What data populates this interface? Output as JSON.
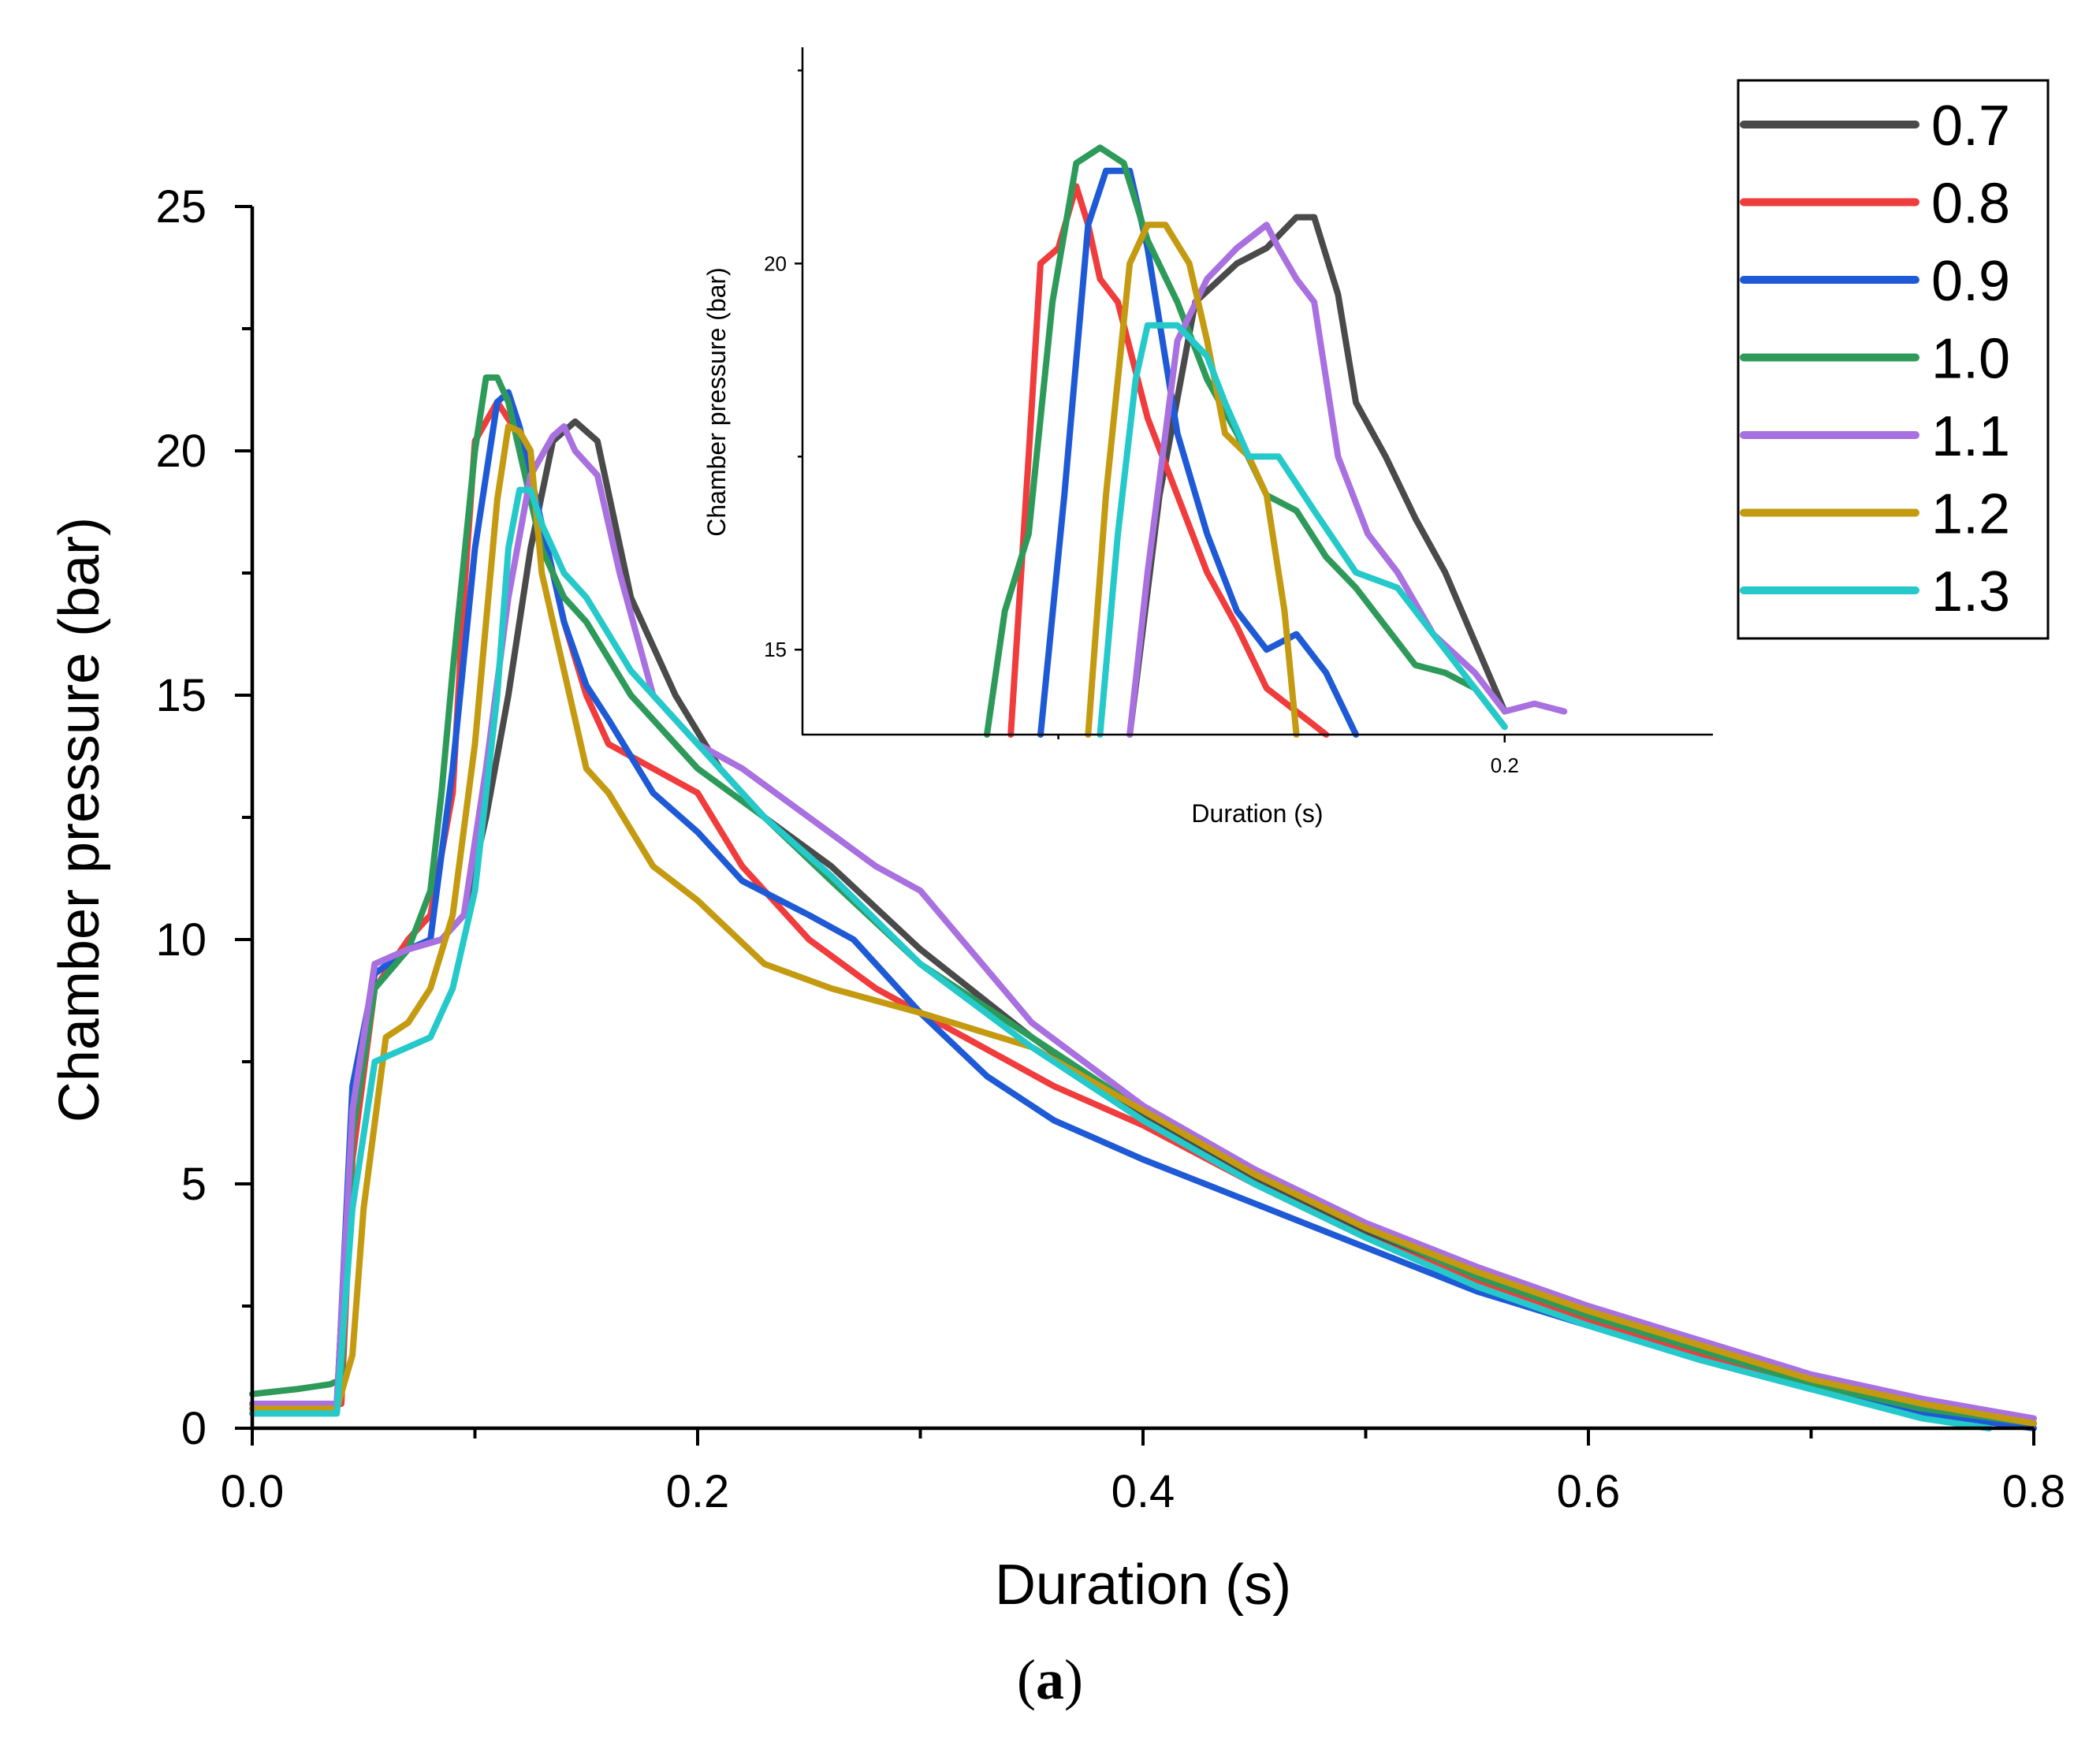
{
  "chart_data": [
    {
      "type": "line",
      "title": "",
      "xlabel": "Duration (s)",
      "ylabel": "Chamber pressure (bar)",
      "xlim": [
        0,
        0.8
      ],
      "ylim": [
        0,
        25
      ],
      "x_ticks": [
        "0.0",
        "0.2",
        "0.4",
        "0.6",
        "0.8"
      ],
      "y_ticks": [
        "0",
        "5",
        "10",
        "15",
        "20",
        "25"
      ],
      "x_tick_values": [
        0,
        0.2,
        0.4,
        0.6,
        0.8
      ],
      "y_tick_values": [
        0,
        5,
        10,
        15,
        20,
        25
      ],
      "legend_position": "top-right",
      "series": [
        {
          "name": "0.7",
          "color": "#4a4a4a",
          "x": [
            0,
            0.02,
            0.038,
            0.045,
            0.055,
            0.07,
            0.085,
            0.095,
            0.105,
            0.115,
            0.125,
            0.135,
            0.145,
            0.155,
            0.17,
            0.19,
            0.21,
            0.23,
            0.26,
            0.3,
            0.35,
            0.4,
            0.45,
            0.5,
            0.55,
            0.6,
            0.65,
            0.7,
            0.75,
            0.8
          ],
          "y": [
            0.5,
            0.5,
            0.5,
            6.5,
            9.5,
            9.8,
            10.0,
            10.5,
            12.5,
            15.0,
            18.0,
            20.2,
            20.6,
            20.2,
            17.0,
            15.0,
            13.5,
            12.5,
            11.5,
            9.8,
            8.0,
            6.4,
            5.1,
            4.0,
            3.1,
            2.3,
            1.6,
            1.0,
            0.5,
            0.1
          ]
        },
        {
          "name": "0.8",
          "color": "#f03c3c",
          "x": [
            0,
            0.02,
            0.04,
            0.045,
            0.055,
            0.07,
            0.08,
            0.09,
            0.095,
            0.1,
            0.11,
            0.12,
            0.13,
            0.14,
            0.15,
            0.16,
            0.18,
            0.2,
            0.22,
            0.25,
            0.28,
            0.32,
            0.36,
            0.4,
            0.45,
            0.5,
            0.55,
            0.6,
            0.65,
            0.7,
            0.75,
            0.8
          ],
          "y": [
            0.5,
            0.5,
            0.5,
            5.5,
            9.0,
            10.0,
            10.5,
            13.0,
            17.0,
            20.2,
            21.0,
            20.3,
            18.5,
            16.5,
            15.0,
            14.0,
            13.5,
            13.0,
            11.5,
            10.0,
            9.0,
            8.0,
            7.0,
            6.2,
            5.0,
            3.9,
            3.0,
            2.2,
            1.5,
            0.9,
            0.4,
            0.1
          ]
        },
        {
          "name": "0.9",
          "color": "#1f5ad6",
          "x": [
            0,
            0.02,
            0.038,
            0.045,
            0.055,
            0.07,
            0.08,
            0.09,
            0.1,
            0.11,
            0.115,
            0.12,
            0.13,
            0.14,
            0.15,
            0.16,
            0.18,
            0.2,
            0.22,
            0.25,
            0.27,
            0.3,
            0.33,
            0.36,
            0.4,
            0.45,
            0.5,
            0.55,
            0.6,
            0.65,
            0.7,
            0.75,
            0.8
          ],
          "y": [
            0.4,
            0.4,
            0.4,
            7.0,
            9.3,
            9.8,
            10.0,
            13.5,
            18.0,
            21.0,
            21.2,
            20.5,
            18.5,
            16.5,
            15.2,
            14.5,
            13.0,
            12.2,
            11.2,
            10.5,
            10.0,
            8.5,
            7.2,
            6.3,
            5.5,
            4.6,
            3.7,
            2.8,
            2.1,
            1.4,
            0.8,
            0.3,
            0.0
          ]
        },
        {
          "name": "1.0",
          "color": "#2e9a5a",
          "x": [
            0,
            0.02,
            0.035,
            0.04,
            0.045,
            0.055,
            0.07,
            0.08,
            0.085,
            0.09,
            0.1,
            0.105,
            0.11,
            0.115,
            0.12,
            0.13,
            0.14,
            0.15,
            0.17,
            0.2,
            0.23,
            0.26,
            0.3,
            0.35,
            0.4,
            0.45,
            0.5,
            0.55,
            0.6,
            0.65,
            0.7,
            0.75,
            0.8
          ],
          "y": [
            0.7,
            0.8,
            0.9,
            1.0,
            6.0,
            9.0,
            9.8,
            11.0,
            13.0,
            15.5,
            20.0,
            21.5,
            21.5,
            21.0,
            20.0,
            18.0,
            17.0,
            16.5,
            15.0,
            13.5,
            12.5,
            11.2,
            9.5,
            8.0,
            6.5,
            5.2,
            4.1,
            3.1,
            2.3,
            1.6,
            0.9,
            0.4,
            0.1
          ]
        },
        {
          "name": "1.1",
          "color": "#a970e0",
          "x": [
            0,
            0.02,
            0.038,
            0.045,
            0.055,
            0.07,
            0.085,
            0.095,
            0.105,
            0.115,
            0.125,
            0.135,
            0.14,
            0.145,
            0.155,
            0.165,
            0.18,
            0.2,
            0.22,
            0.25,
            0.28,
            0.3,
            0.35,
            0.4,
            0.45,
            0.5,
            0.55,
            0.6,
            0.65,
            0.7,
            0.75,
            0.8
          ],
          "y": [
            0.5,
            0.5,
            0.5,
            6.5,
            9.5,
            9.8,
            10.0,
            10.5,
            13.5,
            17.0,
            19.5,
            20.3,
            20.5,
            20.0,
            19.5,
            17.5,
            15.0,
            14.0,
            13.5,
            12.5,
            11.5,
            11.0,
            8.3,
            6.6,
            5.3,
            4.2,
            3.3,
            2.5,
            1.8,
            1.1,
            0.6,
            0.2
          ]
        },
        {
          "name": "1.2",
          "color": "#c49a10",
          "x": [
            0,
            0.02,
            0.038,
            0.045,
            0.05,
            0.06,
            0.07,
            0.08,
            0.09,
            0.1,
            0.11,
            0.115,
            0.12,
            0.125,
            0.13,
            0.14,
            0.15,
            0.16,
            0.18,
            0.2,
            0.23,
            0.26,
            0.3,
            0.35,
            0.4,
            0.45,
            0.5,
            0.55,
            0.6,
            0.65,
            0.7,
            0.75,
            0.8
          ],
          "y": [
            0.4,
            0.4,
            0.4,
            1.5,
            4.5,
            8.0,
            8.3,
            9.0,
            10.5,
            14.0,
            19.0,
            20.5,
            20.4,
            20.0,
            17.5,
            15.5,
            13.5,
            13.0,
            11.5,
            10.8,
            9.5,
            9.0,
            8.5,
            7.8,
            6.5,
            5.2,
            4.1,
            3.2,
            2.4,
            1.7,
            1.0,
            0.5,
            0.1
          ]
        },
        {
          "name": "1.3",
          "color": "#25c9c9",
          "x": [
            0,
            0.02,
            0.038,
            0.045,
            0.055,
            0.07,
            0.08,
            0.09,
            0.1,
            0.11,
            0.115,
            0.12,
            0.125,
            0.13,
            0.14,
            0.15,
            0.17,
            0.2,
            0.23,
            0.26,
            0.3,
            0.35,
            0.4,
            0.45,
            0.5,
            0.55,
            0.6,
            0.65,
            0.7,
            0.75,
            0.78
          ],
          "y": [
            0.3,
            0.3,
            0.3,
            4.5,
            7.5,
            7.8,
            8.0,
            9.0,
            11.0,
            15.0,
            18.0,
            19.2,
            19.2,
            18.5,
            17.5,
            17.0,
            15.5,
            14.0,
            12.5,
            11.3,
            9.5,
            7.8,
            6.3,
            5.0,
            3.9,
            2.9,
            2.1,
            1.4,
            0.8,
            0.2,
            0.0
          ]
        }
      ]
    },
    {
      "type": "line",
      "title": "",
      "xlabel": "Duration (s)",
      "ylabel": "Chamber pressure (bar)",
      "xlim": [
        0.082,
        0.235
      ],
      "ylim": [
        13.9,
        22.8
      ],
      "x_ticks": [
        "0.2"
      ],
      "y_ticks": [
        "15",
        "20"
      ],
      "x_tick_values": [
        0.2
      ],
      "y_tick_values": [
        15,
        20
      ],
      "series": [
        {
          "name": "0.7",
          "color": "#4a4a4a",
          "x": [
            0.137,
            0.142,
            0.148,
            0.155,
            0.16,
            0.165,
            0.168,
            0.172,
            0.175,
            0.18,
            0.185,
            0.19,
            0.195,
            0.2
          ],
          "y": [
            13.9,
            17.0,
            19.5,
            20.0,
            20.2,
            20.6,
            20.6,
            19.6,
            18.2,
            17.5,
            16.7,
            16.0,
            15.1,
            14.2
          ]
        },
        {
          "name": "0.8",
          "color": "#f03c3c",
          "x": [
            0.117,
            0.12,
            0.122,
            0.125,
            0.128,
            0.13,
            0.132,
            0.135,
            0.14,
            0.145,
            0.15,
            0.155,
            0.16,
            0.165,
            0.17
          ],
          "y": [
            13.9,
            17.5,
            20.0,
            20.2,
            21.0,
            20.5,
            19.8,
            19.5,
            18.0,
            17.0,
            16.0,
            15.3,
            14.5,
            14.2,
            13.9
          ]
        },
        {
          "name": "0.9",
          "color": "#1f5ad6",
          "x": [
            0.122,
            0.126,
            0.13,
            0.133,
            0.137,
            0.14,
            0.145,
            0.15,
            0.155,
            0.16,
            0.165,
            0.17,
            0.175
          ],
          "y": [
            13.9,
            17.0,
            20.5,
            21.2,
            21.2,
            20.2,
            17.8,
            16.5,
            15.5,
            15.0,
            15.2,
            14.7,
            13.9
          ]
        },
        {
          "name": "1.0",
          "color": "#2e9a5a",
          "x": [
            0.113,
            0.116,
            0.12,
            0.124,
            0.128,
            0.132,
            0.136,
            0.14,
            0.145,
            0.15,
            0.155,
            0.16,
            0.165,
            0.17,
            0.175,
            0.18,
            0.185,
            0.19,
            0.195,
            0.2
          ],
          "y": [
            13.9,
            15.5,
            16.5,
            19.5,
            21.3,
            21.5,
            21.3,
            20.3,
            19.5,
            18.5,
            17.8,
            17.0,
            16.8,
            16.2,
            15.8,
            15.3,
            14.8,
            14.7,
            14.5,
            14.0
          ]
        },
        {
          "name": "1.1",
          "color": "#a970e0",
          "x": [
            0.137,
            0.14,
            0.145,
            0.15,
            0.155,
            0.16,
            0.162,
            0.165,
            0.168,
            0.172,
            0.177,
            0.182,
            0.188,
            0.195,
            0.2,
            0.205,
            0.21
          ],
          "y": [
            13.9,
            16.0,
            19.0,
            19.8,
            20.2,
            20.5,
            20.2,
            19.8,
            19.5,
            17.5,
            16.5,
            16.0,
            15.2,
            14.7,
            14.2,
            14.3,
            14.2
          ]
        },
        {
          "name": "1.2",
          "color": "#c49a10",
          "x": [
            0.13,
            0.133,
            0.137,
            0.14,
            0.143,
            0.147,
            0.15,
            0.153,
            0.157,
            0.16,
            0.163,
            0.165
          ],
          "y": [
            13.9,
            17.0,
            20.0,
            20.5,
            20.5,
            20.0,
            19.0,
            17.8,
            17.5,
            17.0,
            15.5,
            13.9
          ]
        },
        {
          "name": "1.3",
          "color": "#25c9c9",
          "x": [
            0.132,
            0.135,
            0.138,
            0.14,
            0.145,
            0.15,
            0.153,
            0.157,
            0.162,
            0.168,
            0.175,
            0.182,
            0.19,
            0.195,
            0.2
          ],
          "y": [
            13.9,
            16.5,
            18.5,
            19.2,
            19.2,
            18.8,
            18.2,
            17.5,
            17.5,
            16.8,
            16.0,
            15.8,
            15.0,
            14.5,
            14.0
          ]
        }
      ]
    }
  ],
  "legend": {
    "entries": [
      {
        "label": "0.7",
        "color": "#4a4a4a"
      },
      {
        "label": "0.8",
        "color": "#f03c3c"
      },
      {
        "label": "0.9",
        "color": "#1f5ad6"
      },
      {
        "label": "1.0",
        "color": "#2e9a5a"
      },
      {
        "label": "1.1",
        "color": "#a970e0"
      },
      {
        "label": "1.2",
        "color": "#c49a10"
      },
      {
        "label": "1.3",
        "color": "#25c9c9"
      }
    ]
  },
  "caption": {
    "open": "(",
    "letter": "a",
    "close": ")"
  }
}
